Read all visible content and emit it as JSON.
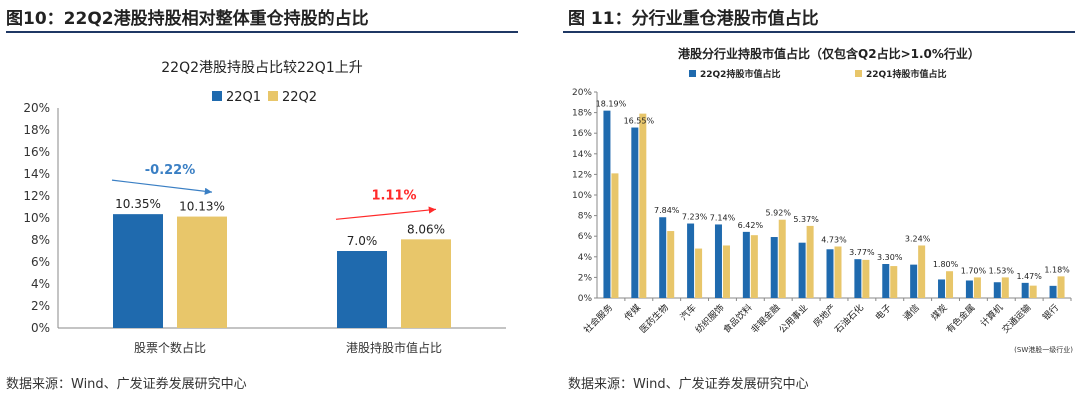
{
  "figures": [
    {
      "title": "图10：22Q2港股持股相对整体重仓持股的占比",
      "source": "数据来源：Wind、广发证券发展研究中心"
    },
    {
      "title": "图 11：分行业重仓港股市值占比",
      "source": "数据来源：Wind、广发证券发展研究中心"
    }
  ],
  "colors": {
    "blue": "#1f6aae",
    "gold": "#e8c66a",
    "arrow_blue": "#3a7fc4",
    "arrow_red": "#ff2a2a",
    "rule": "#1f3864"
  },
  "chart_data": [
    {
      "type": "bar",
      "title": "22Q2港股持股占比较22Q1上升",
      "categories": [
        "股票个数占比",
        "港股持股市值占比"
      ],
      "series": [
        {
          "name": "22Q1",
          "values": [
            10.35,
            7.0
          ],
          "labels": [
            "10.35%",
            "7.0%"
          ]
        },
        {
          "name": "22Q2",
          "values": [
            10.13,
            8.06
          ],
          "labels": [
            "10.13%",
            "8.06%"
          ]
        }
      ],
      "annotations": [
        "-0.22%",
        "1.11%"
      ],
      "ylim": [
        0,
        20
      ],
      "yticks": [
        "0%",
        "2%",
        "4%",
        "6%",
        "8%",
        "10%",
        "12%",
        "14%",
        "16%",
        "18%",
        "20%"
      ],
      "legend": "top-center",
      "grid": false
    },
    {
      "type": "bar",
      "title": "港股分行业持股市值占比（仅包含Q2占比>1.0%行业）",
      "categories": [
        "社会服务",
        "传媒",
        "医药生物",
        "汽车",
        "纺织服饰",
        "食品饮料",
        "非银金融",
        "公用事业",
        "房地产",
        "石油石化",
        "电子",
        "通信",
        "煤炭",
        "有色金属",
        "计算机",
        "交通运输",
        "银行"
      ],
      "series": [
        {
          "name": "22Q2持股市值占比",
          "values": [
            18.19,
            16.55,
            7.84,
            7.23,
            7.14,
            6.42,
            5.92,
            5.37,
            4.73,
            3.77,
            3.3,
            3.24,
            1.8,
            1.7,
            1.53,
            1.47,
            1.18
          ],
          "labels": [
            "18.19%",
            "16.55%",
            "7.84%",
            "7.23%",
            "7.14%",
            "6.42%",
            "5.92%",
            "5.37%",
            "4.73%",
            "3.77%",
            "3.30%",
            "3.24%",
            "1.80%",
            "1.70%",
            "1.53%",
            "1.47%",
            "1.18%"
          ]
        },
        {
          "name": "22Q1持股市值占比",
          "values": [
            12.1,
            17.9,
            6.5,
            4.8,
            5.1,
            6.1,
            7.6,
            7.0,
            5.0,
            3.7,
            3.1,
            5.1,
            2.6,
            2.0,
            2.0,
            1.2,
            2.1
          ]
        }
      ],
      "ylim": [
        0,
        20
      ],
      "yticks": [
        "0%",
        "2%",
        "4%",
        "6%",
        "8%",
        "10%",
        "12%",
        "14%",
        "16%",
        "18%",
        "20%"
      ],
      "footnote": "(SW港股一级行业)",
      "legend": "top",
      "grid": false
    }
  ]
}
